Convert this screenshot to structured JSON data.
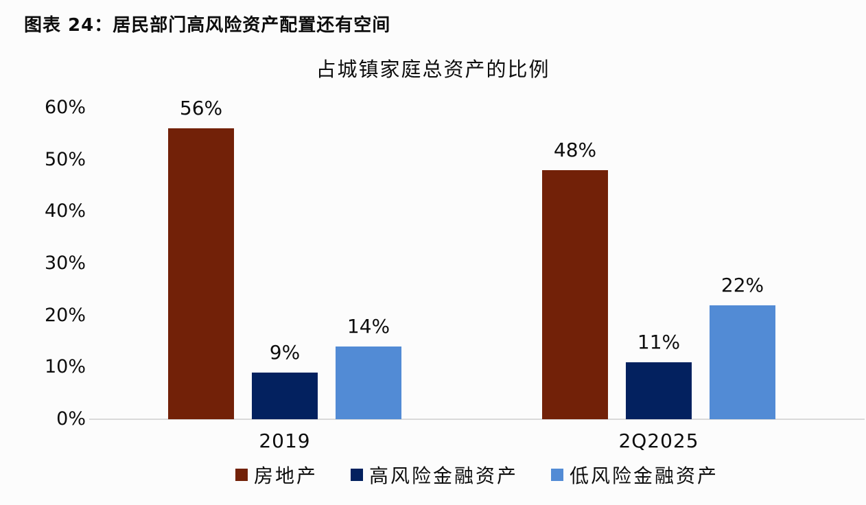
{
  "figure": {
    "caption": "图表 24：居民部门高风险资产配置还有空间"
  },
  "chart_data": {
    "type": "bar",
    "title": "占城镇家庭总资产的比例",
    "categories": [
      "2019",
      "2Q2025"
    ],
    "series": [
      {
        "name": "房地产",
        "color": "#722108",
        "values": [
          56,
          48
        ],
        "labels": [
          "56%",
          "48%"
        ]
      },
      {
        "name": "高风险金融资产",
        "color": "#03215F",
        "values": [
          9,
          11
        ],
        "labels": [
          "9%",
          "11%"
        ]
      },
      {
        "name": "低风险金融资产",
        "color": "#528BD5",
        "values": [
          14,
          22
        ],
        "labels": [
          "14%",
          "22%"
        ]
      }
    ],
    "xlabel": "",
    "ylabel": "",
    "ylim": [
      0,
      60
    ],
    "yticks": [
      "0%",
      "10%",
      "20%",
      "30%",
      "40%",
      "50%",
      "60%"
    ],
    "grid": false,
    "legend_position": "bottom",
    "colors": {
      "axis_line": "#D9D9D9",
      "text": "#0D0D0D",
      "background": "#FCFCFC"
    }
  }
}
